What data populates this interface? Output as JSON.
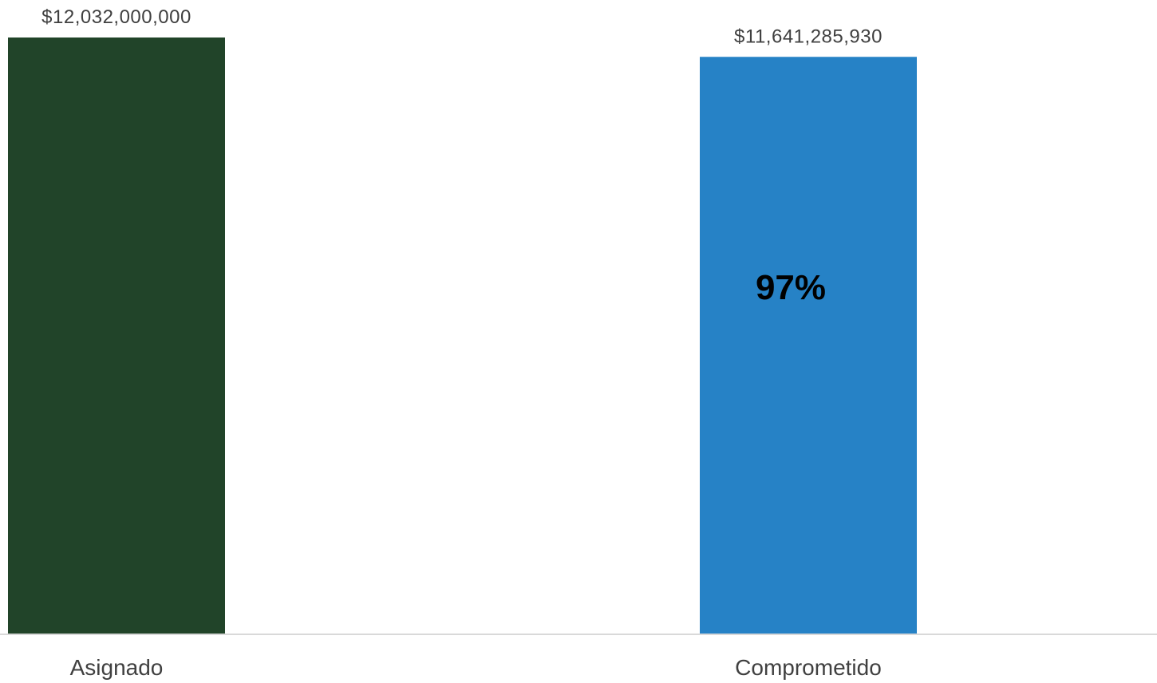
{
  "chart_data": {
    "type": "bar",
    "categories": [
      "Asignado",
      "Comprometido"
    ],
    "values": [
      12032000000,
      11641285930
    ],
    "data_labels": [
      "$12,032,000,000",
      "$11,641,285,930"
    ],
    "colors": [
      "#214429",
      "#2682c6"
    ],
    "annotation": "97%",
    "annotation_category": "Comprometido",
    "ylim": [
      0,
      12032000000
    ],
    "grid": false,
    "legend": "none",
    "axis_color": "#d9d9d9"
  }
}
